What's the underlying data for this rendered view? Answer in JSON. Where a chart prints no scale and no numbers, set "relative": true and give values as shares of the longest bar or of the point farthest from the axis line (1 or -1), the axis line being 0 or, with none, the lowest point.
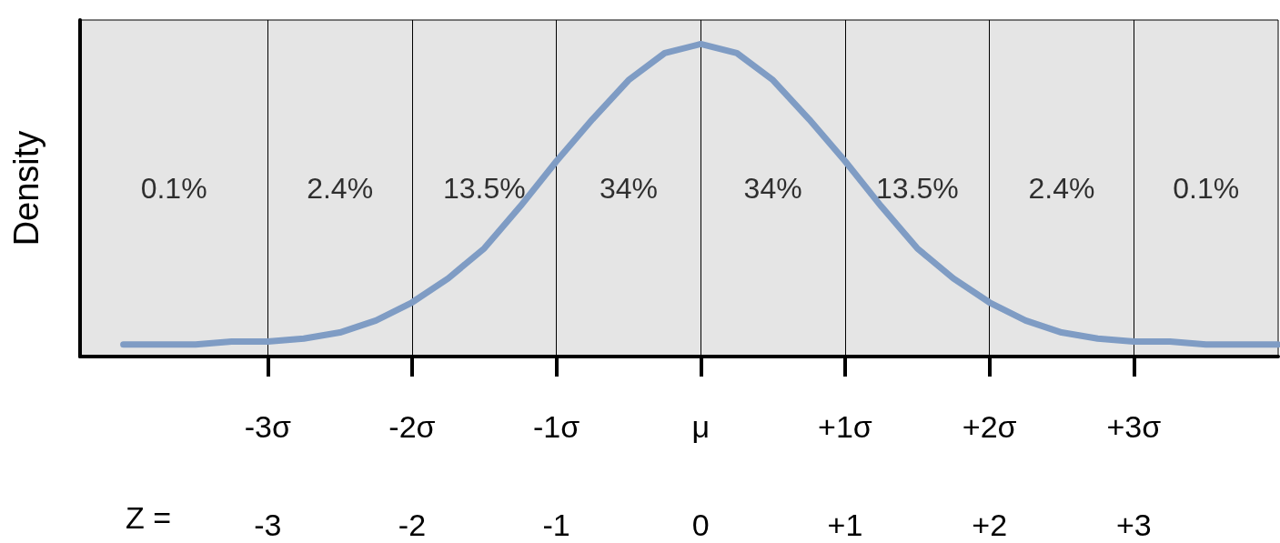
{
  "chart_data": {
    "type": "line",
    "relative": true,
    "ylabel": "Density",
    "x2label": "Z =",
    "x": [
      -4,
      -3.75,
      -3.5,
      -3.25,
      -3,
      -2.75,
      -2.5,
      -2.25,
      -2,
      -1.75,
      -1.5,
      -1.25,
      -1,
      -0.75,
      -0.5,
      -0.25,
      0,
      0.25,
      0.5,
      0.75,
      1,
      1.25,
      1.5,
      1.75,
      2,
      2.25,
      2.5,
      2.75,
      3,
      3.25,
      3.5,
      3.75,
      4
    ],
    "series": [
      {
        "color": "#7f9cc4",
        "values": [
          0,
          0,
          0,
          0.01,
          0.01,
          0.02,
          0.04,
          0.08,
          0.14,
          0.22,
          0.32,
          0.46,
          0.61,
          0.75,
          0.88,
          0.97,
          1,
          0.97,
          0.88,
          0.75,
          0.61,
          0.46,
          0.32,
          0.22,
          0.14,
          0.08,
          0.04,
          0.02,
          0.01,
          0.01,
          0,
          0,
          0
        ]
      }
    ],
    "xlim": [
      -4.3,
      4
    ],
    "xticks": [
      {
        "value": -3,
        "label": "-3σ"
      },
      {
        "value": -2,
        "label": "-2σ"
      },
      {
        "value": -1,
        "label": "-1σ"
      },
      {
        "value": 0,
        "label": "μ"
      },
      {
        "value": 1,
        "label": "+1σ"
      },
      {
        "value": 2,
        "label": "+2σ"
      },
      {
        "value": 3,
        "label": "+3σ"
      }
    ],
    "x2lim": [
      -4.3,
      4
    ],
    "x2ticks": [
      -3,
      -2,
      -1,
      0,
      {
        "value": 1,
        "label": "+1"
      },
      {
        "value": 2,
        "label": "+2"
      },
      {
        "value": 3,
        "label": "+3"
      }
    ],
    "grid": "x",
    "marker": "none",
    "line_style": "solid",
    "annotations": [
      "0.1%",
      "2.4%",
      "13.5%",
      "34%",
      "34%",
      "13.5%",
      "2.4%",
      "0.1%"
    ]
  }
}
